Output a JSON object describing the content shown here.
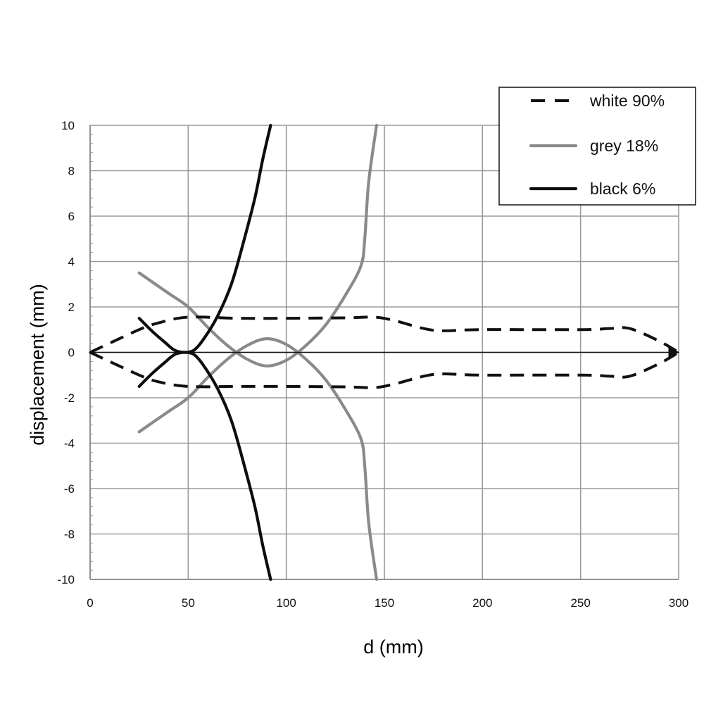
{
  "chart_data": {
    "type": "line",
    "xlabel": "d (mm)",
    "ylabel": "displacement (mm)",
    "xlim": [
      0,
      300
    ],
    "ylim": [
      -10,
      10
    ],
    "x_ticks": [
      "0",
      "50",
      "100",
      "150",
      "200",
      "250",
      "300"
    ],
    "y_ticks": [
      "-10",
      "-8",
      "-6",
      "-4",
      "-2",
      "0",
      "2",
      "4",
      "6",
      "8",
      "10"
    ],
    "grid": true,
    "legend_position": "top-right",
    "series": [
      {
        "name": "white 90%",
        "color": "#111111",
        "dash": "dashed",
        "branches": [
          [
            [
              0,
              0
            ],
            [
              25,
              1.0
            ],
            [
              35,
              1.3
            ],
            [
              50,
              1.55
            ],
            [
              75,
              1.5
            ],
            [
              100,
              1.5
            ],
            [
              130,
              1.52
            ],
            [
              145,
              1.55
            ],
            [
              155,
              1.4
            ],
            [
              170,
              1.05
            ],
            [
              180,
              0.95
            ],
            [
              200,
              1.0
            ],
            [
              250,
              1.0
            ],
            [
              265,
              1.05
            ],
            [
              275,
              1.05
            ],
            [
              290,
              0.5
            ],
            [
              300,
              0
            ]
          ],
          [
            [
              0,
              0
            ],
            [
              25,
              -1.0
            ],
            [
              35,
              -1.3
            ],
            [
              50,
              -1.5
            ],
            [
              75,
              -1.5
            ],
            [
              100,
              -1.5
            ],
            [
              130,
              -1.52
            ],
            [
              145,
              -1.55
            ],
            [
              155,
              -1.4
            ],
            [
              170,
              -1.05
            ],
            [
              180,
              -0.95
            ],
            [
              200,
              -1.0
            ],
            [
              250,
              -1.0
            ],
            [
              265,
              -1.05
            ],
            [
              275,
              -1.05
            ],
            [
              290,
              -0.5
            ],
            [
              300,
              0
            ]
          ]
        ]
      },
      {
        "name": "grey 18%",
        "color": "#8a8a8a",
        "dash": "solid",
        "branches": [
          [
            [
              25,
              3.5
            ],
            [
              40,
              2.6
            ],
            [
              50,
              2.0
            ],
            [
              60,
              1.1
            ],
            [
              70,
              0.3
            ],
            [
              80,
              -0.3
            ],
            [
              90,
              -0.6
            ],
            [
              100,
              -0.35
            ],
            [
              110,
              0.3
            ],
            [
              120,
              1.2
            ],
            [
              130,
              2.5
            ],
            [
              138,
              3.8
            ],
            [
              140,
              5.0
            ],
            [
              142,
              7.5
            ],
            [
              146,
              10.0
            ]
          ],
          [
            [
              25,
              -3.5
            ],
            [
              40,
              -2.6
            ],
            [
              50,
              -2.0
            ],
            [
              60,
              -1.1
            ],
            [
              70,
              -0.3
            ],
            [
              80,
              0.3
            ],
            [
              90,
              0.6
            ],
            [
              100,
              0.35
            ],
            [
              110,
              -0.3
            ],
            [
              120,
              -1.2
            ],
            [
              130,
              -2.5
            ],
            [
              138,
              -3.8
            ],
            [
              140,
              -5.0
            ],
            [
              142,
              -7.5
            ],
            [
              146,
              -10.0
            ]
          ]
        ]
      },
      {
        "name": "black 6%",
        "color": "#0d0d0d",
        "dash": "solid",
        "branches": [
          [
            [
              25,
              1.5
            ],
            [
              32,
              0.9
            ],
            [
              38,
              0.45
            ],
            [
              43,
              0.1
            ],
            [
              48,
              0
            ],
            [
              53,
              0.1
            ],
            [
              58,
              0.6
            ],
            [
              65,
              1.6
            ],
            [
              72,
              3.0
            ],
            [
              78,
              4.8
            ],
            [
              84,
              6.8
            ],
            [
              88,
              8.5
            ],
            [
              92,
              10.0
            ]
          ],
          [
            [
              25,
              -1.5
            ],
            [
              32,
              -0.9
            ],
            [
              38,
              -0.45
            ],
            [
              43,
              -0.1
            ],
            [
              48,
              0
            ],
            [
              53,
              -0.1
            ],
            [
              58,
              -0.6
            ],
            [
              65,
              -1.6
            ],
            [
              72,
              -3.0
            ],
            [
              78,
              -4.8
            ],
            [
              84,
              -6.8
            ],
            [
              88,
              -8.5
            ],
            [
              92,
              -10.0
            ]
          ]
        ]
      }
    ]
  }
}
